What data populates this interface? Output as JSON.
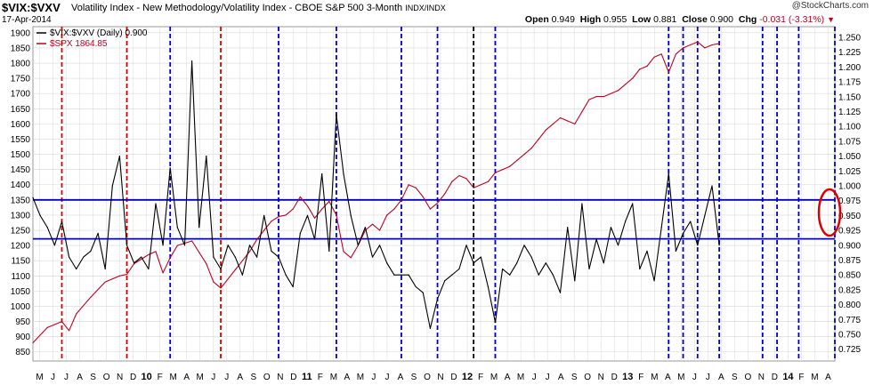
{
  "header": {
    "symbol": "$VIX:$VXV",
    "description": "Volatility Index - New Methodology/Volatility Index - CBOE S&P 500 3-Month",
    "exchange": "INDX/INDX",
    "date": "17-Apr-2014",
    "source": "@StockCharts.com"
  },
  "quote": {
    "open_label": "Open",
    "open": "0.949",
    "high_label": "High",
    "high": "0.955",
    "low_label": "Low",
    "low": "0.881",
    "close_label": "Close",
    "close": "0.900",
    "chg_label": "Chg",
    "chg": "-0.031 (-3.31%)",
    "chg_icon": "down-triangle-icon"
  },
  "legend": {
    "primary": "$VIX:$VXV (Daily) 0.900",
    "overlay": "$SPX 1864.85"
  },
  "colors": {
    "ratio": "#000000",
    "spx": "#c00020",
    "vline_blue": "#0000cc",
    "vline_red": "#dd0000",
    "vline_black": "#000000",
    "hline": "#0000cc",
    "circle": "#dd0000",
    "grid": "#d8d8d8"
  },
  "chart_data": {
    "type": "line",
    "left_axis": {
      "series": "$SPX",
      "ylim": [
        820,
        1920
      ],
      "ticks": [
        850,
        900,
        950,
        1000,
        1050,
        1100,
        1150,
        1200,
        1250,
        1300,
        1350,
        1400,
        1450,
        1500,
        1550,
        1600,
        1650,
        1700,
        1750,
        1800,
        1850,
        1900
      ]
    },
    "right_axis": {
      "series": "$VIX:$VXV",
      "ylim": [
        0.705,
        1.268
      ],
      "ticks": [
        0.725,
        0.75,
        0.775,
        0.8,
        0.825,
        0.85,
        0.875,
        0.9,
        0.925,
        0.95,
        0.975,
        1.0,
        1.025,
        1.05,
        1.075,
        1.1,
        1.125,
        1.15,
        1.175,
        1.2,
        1.225,
        1.25
      ]
    },
    "x_labels": [
      "M",
      "J",
      "J",
      "A",
      "S",
      "O",
      "N",
      "D",
      "10",
      "F",
      "M",
      "A",
      "M",
      "J",
      "J",
      "A",
      "S",
      "O",
      "N",
      "D",
      "11",
      "F",
      "M",
      "A",
      "M",
      "J",
      "J",
      "A",
      "S",
      "O",
      "N",
      "D",
      "12",
      "F",
      "M",
      "A",
      "M",
      "J",
      "J",
      "A",
      "S",
      "O",
      "N",
      "D",
      "13",
      "F",
      "M",
      "A",
      "M",
      "J",
      "J",
      "A",
      "S",
      "O",
      "N",
      "D",
      "14",
      "F",
      "M",
      "A"
    ],
    "x_bold": [
      "10",
      "11",
      "12",
      "13",
      "14"
    ],
    "series": [
      {
        "name": "$SPX 1864.85",
        "axis": "left",
        "points": [
          [
            0,
            880
          ],
          [
            2,
            930
          ],
          [
            4,
            950
          ],
          [
            5,
            920
          ],
          [
            6,
            975
          ],
          [
            8,
            1030
          ],
          [
            10,
            1080
          ],
          [
            12,
            1100
          ],
          [
            13,
            1105
          ],
          [
            14,
            1140
          ],
          [
            16,
            1170
          ],
          [
            17,
            1180
          ],
          [
            18,
            1110
          ],
          [
            19,
            1160
          ],
          [
            20,
            1200
          ],
          [
            22,
            1215
          ],
          [
            24,
            1140
          ],
          [
            25,
            1080
          ],
          [
            26,
            1060
          ],
          [
            28,
            1120
          ],
          [
            29,
            1150
          ],
          [
            30,
            1180
          ],
          [
            31,
            1220
          ],
          [
            32,
            1250
          ],
          [
            33,
            1280
          ],
          [
            34,
            1295
          ],
          [
            35,
            1300
          ],
          [
            36,
            1320
          ],
          [
            37,
            1360
          ],
          [
            38,
            1330
          ],
          [
            39,
            1290
          ],
          [
            40,
            1320
          ],
          [
            41,
            1345
          ],
          [
            42,
            1300
          ],
          [
            43,
            1180
          ],
          [
            44,
            1160
          ],
          [
            45,
            1200
          ],
          [
            46,
            1250
          ],
          [
            47,
            1270
          ],
          [
            48,
            1250
          ],
          [
            49,
            1300
          ],
          [
            50,
            1320
          ],
          [
            51,
            1350
          ],
          [
            52,
            1400
          ],
          [
            53,
            1390
          ],
          [
            54,
            1360
          ],
          [
            55,
            1320
          ],
          [
            56,
            1340
          ],
          [
            57,
            1370
          ],
          [
            58,
            1410
          ],
          [
            59,
            1430
          ],
          [
            60,
            1420
          ],
          [
            61,
            1390
          ],
          [
            62,
            1400
          ],
          [
            63,
            1410
          ],
          [
            64,
            1440
          ],
          [
            65,
            1450
          ],
          [
            66,
            1460
          ],
          [
            67,
            1480
          ],
          [
            68,
            1500
          ],
          [
            69,
            1520
          ],
          [
            70,
            1550
          ],
          [
            71,
            1580
          ],
          [
            72,
            1600
          ],
          [
            73,
            1620
          ],
          [
            74,
            1610
          ],
          [
            75,
            1600
          ],
          [
            76,
            1640
          ],
          [
            77,
            1680
          ],
          [
            78,
            1690
          ],
          [
            79,
            1690
          ],
          [
            80,
            1700
          ],
          [
            81,
            1710
          ],
          [
            82,
            1730
          ],
          [
            83,
            1750
          ],
          [
            84,
            1780
          ],
          [
            85,
            1790
          ],
          [
            86,
            1820
          ],
          [
            87,
            1830
          ],
          [
            88,
            1770
          ],
          [
            89,
            1830
          ],
          [
            90,
            1850
          ],
          [
            91,
            1860
          ],
          [
            92,
            1870
          ],
          [
            93,
            1850
          ],
          [
            94,
            1860
          ],
          [
            95,
            1864.85
          ]
        ]
      },
      {
        "name": "$VIX:$VXV (Daily) 0.900",
        "axis": "right",
        "points": [
          [
            0,
            0.98
          ],
          [
            1,
            0.95
          ],
          [
            2,
            0.93
          ],
          [
            3,
            0.9
          ],
          [
            4,
            0.94
          ],
          [
            5,
            0.88
          ],
          [
            6,
            0.86
          ],
          [
            7,
            0.88
          ],
          [
            8,
            0.89
          ],
          [
            9,
            0.92
          ],
          [
            10,
            0.86
          ],
          [
            11,
            1.0
          ],
          [
            12,
            1.05
          ],
          [
            13,
            0.9
          ],
          [
            14,
            0.87
          ],
          [
            15,
            0.88
          ],
          [
            16,
            0.86
          ],
          [
            17,
            0.97
          ],
          [
            18,
            0.9
          ],
          [
            19,
            1.03
          ],
          [
            20,
            0.93
          ],
          [
            21,
            0.9
          ],
          [
            22,
            1.21
          ],
          [
            23,
            0.93
          ],
          [
            24,
            1.05
          ],
          [
            25,
            0.88
          ],
          [
            26,
            0.86
          ],
          [
            27,
            0.9
          ],
          [
            28,
            0.88
          ],
          [
            29,
            0.85
          ],
          [
            30,
            0.9
          ],
          [
            31,
            0.88
          ],
          [
            32,
            0.95
          ],
          [
            33,
            0.89
          ],
          [
            34,
            0.88
          ],
          [
            35,
            0.85
          ],
          [
            36,
            0.83
          ],
          [
            37,
            0.92
          ],
          [
            38,
            0.95
          ],
          [
            39,
            0.91
          ],
          [
            40,
            1.02
          ],
          [
            41,
            0.89
          ],
          [
            42,
            1.12
          ],
          [
            43,
            1.02
          ],
          [
            44,
            0.95
          ],
          [
            45,
            0.9
          ],
          [
            46,
            0.93
          ],
          [
            47,
            0.88
          ],
          [
            48,
            0.9
          ],
          [
            49,
            0.87
          ],
          [
            50,
            0.85
          ],
          [
            51,
            0.85
          ],
          [
            52,
            0.85
          ],
          [
            53,
            0.83
          ],
          [
            54,
            0.82
          ],
          [
            55,
            0.76
          ],
          [
            56,
            0.81
          ],
          [
            57,
            0.84
          ],
          [
            58,
            0.85
          ],
          [
            59,
            0.86
          ],
          [
            60,
            0.9
          ],
          [
            61,
            0.87
          ],
          [
            62,
            0.88
          ],
          [
            63,
            0.83
          ],
          [
            64,
            0.77
          ],
          [
            65,
            0.86
          ],
          [
            66,
            0.85
          ],
          [
            67,
            0.87
          ],
          [
            68,
            0.9
          ],
          [
            69,
            0.88
          ],
          [
            70,
            0.85
          ],
          [
            71,
            0.87
          ],
          [
            72,
            0.85
          ],
          [
            73,
            0.82
          ],
          [
            74,
            0.93
          ],
          [
            75,
            0.84
          ],
          [
            76,
            0.97
          ],
          [
            77,
            0.86
          ],
          [
            78,
            0.91
          ],
          [
            79,
            0.87
          ],
          [
            80,
            0.93
          ],
          [
            81,
            0.9
          ],
          [
            82,
            0.94
          ],
          [
            83,
            0.97
          ],
          [
            84,
            0.86
          ],
          [
            85,
            0.89
          ],
          [
            86,
            0.84
          ],
          [
            87,
            0.93
          ],
          [
            88,
            1.02
          ],
          [
            89,
            0.89
          ],
          [
            90,
            0.92
          ],
          [
            91,
            0.94
          ],
          [
            92,
            0.9
          ],
          [
            93,
            0.95
          ],
          [
            94,
            1.0
          ],
          [
            95,
            0.9
          ]
        ]
      }
    ],
    "horizontal_lines_left_axis": [
      1350,
      1222
    ],
    "vertical_markers": [
      {
        "color": "red",
        "x": 4
      },
      {
        "color": "red",
        "x": 13
      },
      {
        "color": "red",
        "x": 26
      },
      {
        "color": "blue",
        "x": 19
      },
      {
        "color": "blue",
        "x": 34
      },
      {
        "color": "blue",
        "x": 42
      },
      {
        "color": "blue",
        "x": 51
      },
      {
        "color": "blue",
        "x": 56
      },
      {
        "color": "black",
        "x": 61
      },
      {
        "color": "blue",
        "x": 64
      },
      {
        "color": "blue",
        "x": 88
      },
      {
        "color": "blue",
        "x": 90
      },
      {
        "color": "blue",
        "x": 92
      },
      {
        "color": "blue",
        "x": 95
      },
      {
        "color": "blue",
        "x": 101
      },
      {
        "color": "blue",
        "x": 103
      },
      {
        "color": "blue",
        "x": 106
      },
      {
        "color": "blue",
        "x": 111
      }
    ],
    "annotation": "ellipse-marker-icon",
    "grid": true
  }
}
